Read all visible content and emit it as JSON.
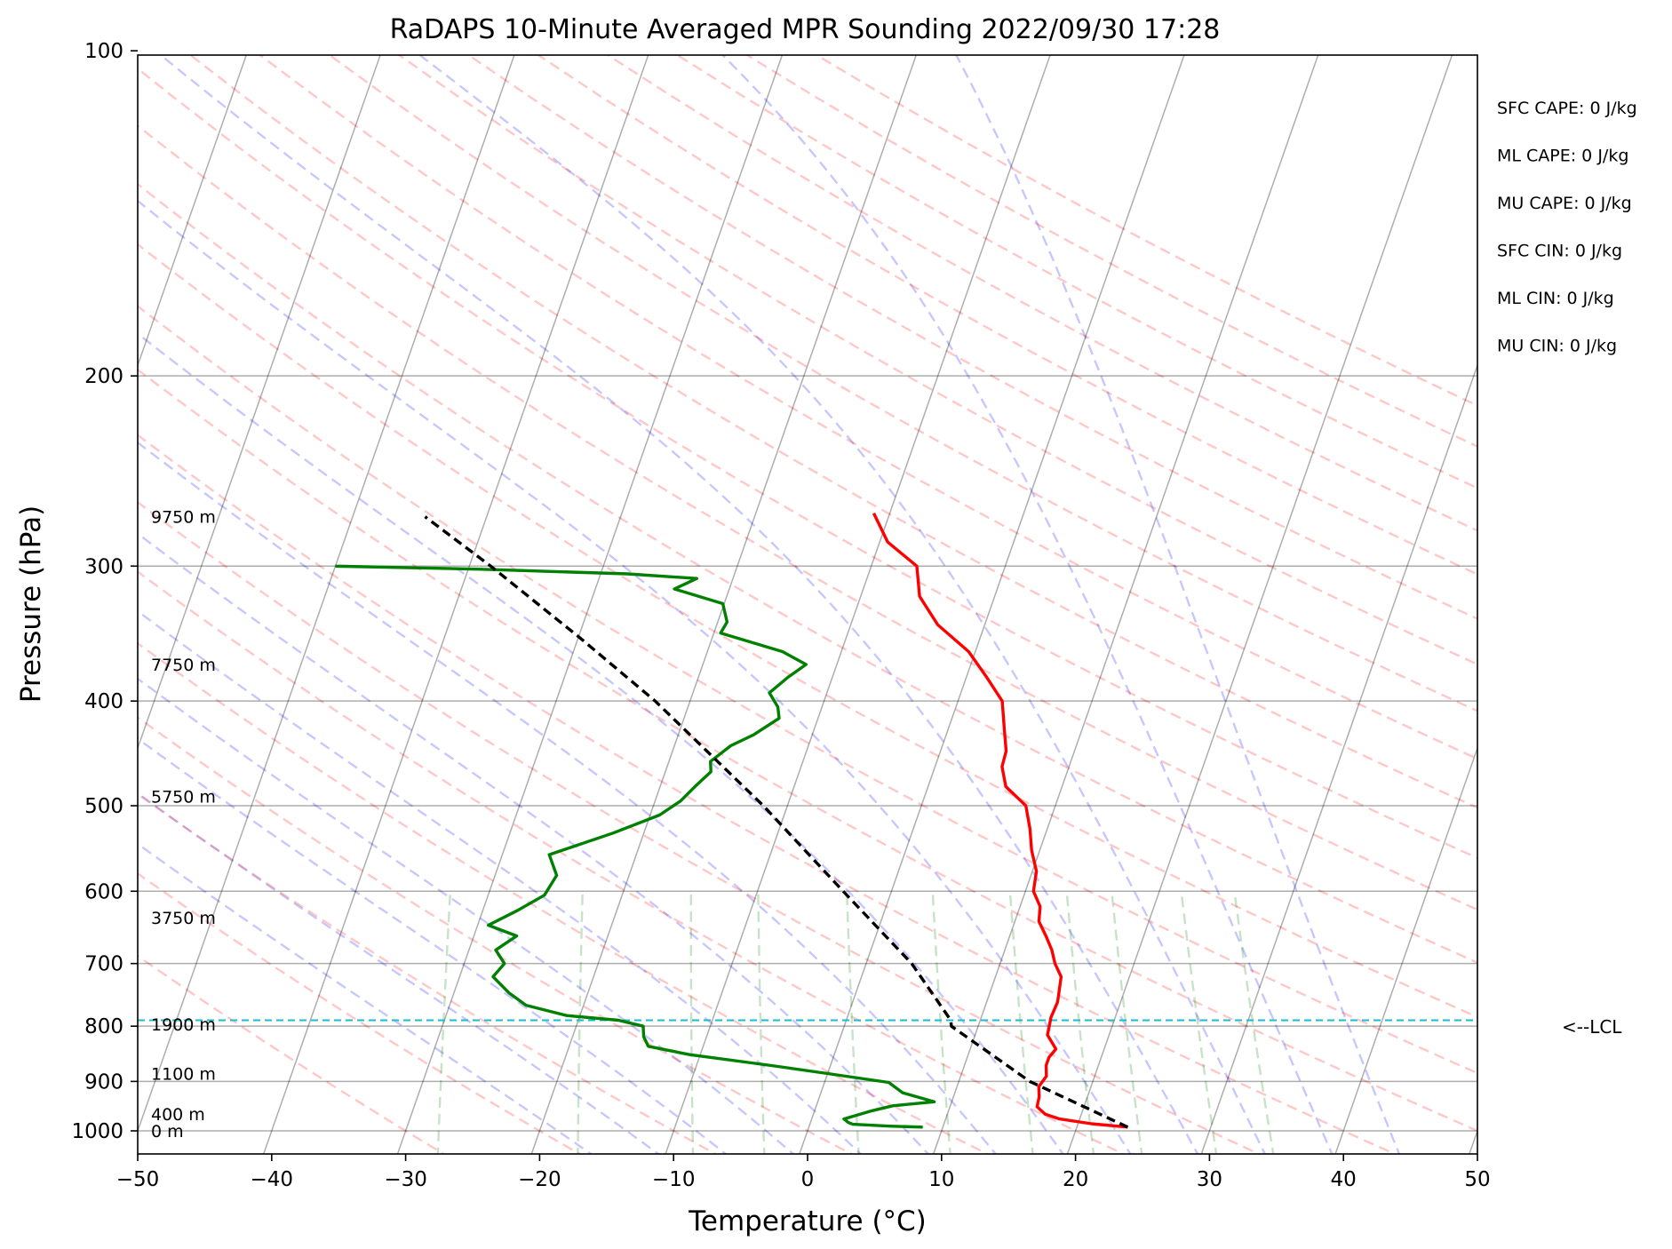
{
  "chart_data": {
    "type": "skew-t",
    "title": "RaDAPS 10-Minute Averaged MPR Sounding 2022/09/30 17:28",
    "xlabel": "Temperature (°C)",
    "ylabel": "Pressure (hPa)",
    "xlim": [
      -50,
      50
    ],
    "ylim": [
      1050,
      100
    ],
    "y_scale": "log",
    "x_ticks": [
      "−50",
      "−40",
      "−30",
      "−20",
      "−10",
      "0",
      "10",
      "20",
      "30",
      "40",
      "50"
    ],
    "y_ticks": [
      "100",
      "200",
      "300",
      "400",
      "500",
      "600",
      "700",
      "800",
      "900",
      "1000"
    ],
    "stats": [
      "SFC CAPE: 0 J/kg",
      "ML CAPE: 0 J/kg",
      "MU CAPE: 0 J/kg",
      "SFC CIN: 0 J/kg",
      "ML CIN: 0 J/kg",
      "MU CIN: 0 J/kg"
    ],
    "lcl": {
      "label": "<--LCL",
      "pressure": 790
    },
    "height_labels": [
      {
        "text": "9750 m",
        "pressure": 270
      },
      {
        "text": "7750 m",
        "pressure": 370
      },
      {
        "text": "5750 m",
        "pressure": 490
      },
      {
        "text": "3750 m",
        "pressure": 635
      },
      {
        "text": "1900 m",
        "pressure": 797
      },
      {
        "text": "1100 m",
        "pressure": 885
      },
      {
        "text": "400 m",
        "pressure": 965
      },
      {
        "text": "0 m",
        "pressure": 1000
      }
    ],
    "series": [
      {
        "color": "#ff0000",
        "points": [
          [
            992,
            23.8
          ],
          [
            985,
            21.0
          ],
          [
            975,
            18.5
          ],
          [
            965,
            17.3
          ],
          [
            950,
            16.5
          ],
          [
            930,
            16.4
          ],
          [
            910,
            16.1
          ],
          [
            890,
            16.4
          ],
          [
            870,
            16.1
          ],
          [
            855,
            16.1
          ],
          [
            840,
            16.4
          ],
          [
            815,
            15.4
          ],
          [
            800,
            15.3
          ],
          [
            785,
            15.2
          ],
          [
            760,
            15.3
          ],
          [
            740,
            15.1
          ],
          [
            720,
            14.9
          ],
          [
            700,
            14.1
          ],
          [
            680,
            13.5
          ],
          [
            660,
            12.7
          ],
          [
            640,
            11.8
          ],
          [
            620,
            11.5
          ],
          [
            600,
            10.6
          ],
          [
            575,
            10.3
          ],
          [
            550,
            9.4
          ],
          [
            525,
            8.7
          ],
          [
            500,
            7.8
          ],
          [
            480,
            5.8
          ],
          [
            460,
            5.0
          ],
          [
            445,
            4.9
          ],
          [
            425,
            4.2
          ],
          [
            400,
            3.3
          ],
          [
            380,
            1.5
          ],
          [
            360,
            -0.5
          ],
          [
            340,
            -3.5
          ],
          [
            320,
            -5.6
          ],
          [
            300,
            -6.6
          ],
          [
            285,
            -9.4
          ],
          [
            268,
            -11.2
          ]
        ]
      },
      {
        "color": "#008000",
        "points": [
          [
            992,
            8.5
          ],
          [
            990,
            6.0
          ],
          [
            986,
            3.2
          ],
          [
            982,
            2.8
          ],
          [
            975,
            2.4
          ],
          [
            958,
            4.3
          ],
          [
            948,
            5.7
          ],
          [
            940,
            8.7
          ],
          [
            922,
            6.1
          ],
          [
            902,
            4.8
          ],
          [
            885,
            0.0
          ],
          [
            870,
            -4.4
          ],
          [
            850,
            -10.8
          ],
          [
            835,
            -14.1
          ],
          [
            818,
            -14.7
          ],
          [
            800,
            -15.0
          ],
          [
            790,
            -17.0
          ],
          [
            782,
            -21.0
          ],
          [
            765,
            -24.3
          ],
          [
            745,
            -25.9
          ],
          [
            720,
            -27.5
          ],
          [
            700,
            -27.0
          ],
          [
            680,
            -28.0
          ],
          [
            660,
            -26.8
          ],
          [
            645,
            -29.2
          ],
          [
            625,
            -27.4
          ],
          [
            605,
            -25.8
          ],
          [
            580,
            -25.4
          ],
          [
            555,
            -26.5
          ],
          [
            530,
            -22.3
          ],
          [
            510,
            -19.3
          ],
          [
            495,
            -18.1
          ],
          [
            480,
            -17.4
          ],
          [
            465,
            -16.6
          ],
          [
            455,
            -16.9
          ],
          [
            440,
            -15.8
          ],
          [
            430,
            -14.4
          ],
          [
            415,
            -12.9
          ],
          [
            405,
            -13.3
          ],
          [
            393,
            -14.3
          ],
          [
            380,
            -13.3
          ],
          [
            370,
            -12.3
          ],
          [
            360,
            -14.4
          ],
          [
            346,
            -19.5
          ],
          [
            338,
            -19.3
          ],
          [
            325,
            -20.1
          ],
          [
            315,
            -24.1
          ],
          [
            308,
            -22.7
          ],
          [
            305,
            -28.0
          ],
          [
            302,
            -39.0
          ],
          [
            300,
            -50.0
          ]
        ]
      },
      {
        "color": "#000000",
        "dashed": true,
        "points": [
          [
            992,
            23.8
          ],
          [
            900,
            15.3
          ],
          [
            800,
            8.0
          ],
          [
            790,
            7.8
          ],
          [
            700,
            3.4
          ],
          [
            600,
            -3.6
          ],
          [
            500,
            -11.8
          ],
          [
            400,
            -22.6
          ],
          [
            350,
            -29.8
          ],
          [
            300,
            -38.4
          ],
          [
            270,
            -44.6
          ]
        ]
      }
    ]
  }
}
